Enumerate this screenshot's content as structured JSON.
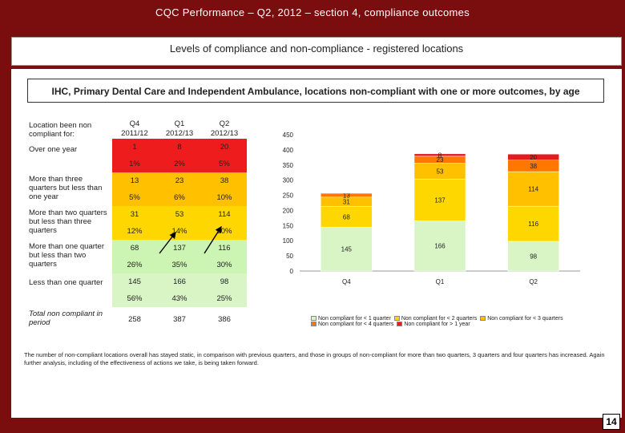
{
  "header": {
    "title": "CQC Performance – Q2, 2012 – section 4, compliance outcomes",
    "subtitle": "Levels of compliance and non-compliance - registered locations",
    "heading": "IHC, Primary Dental Care and Independent Ambulance, locations non-compliant with one or more outcomes, by age"
  },
  "table": {
    "label_header": "Location been non compliant for:",
    "columns": [
      {
        "q": "Q4",
        "y": "2011/12"
      },
      {
        "q": "Q1",
        "y": "2012/13"
      },
      {
        "q": "Q2",
        "y": "2012/13"
      }
    ],
    "rows": [
      {
        "label": "Over one year",
        "counts": [
          "1",
          "8",
          "20"
        ],
        "pcts": [
          "1%",
          "2%",
          "5%"
        ]
      },
      {
        "label": "More than three quarters but less than one year",
        "counts": [
          "13",
          "23",
          "38"
        ],
        "pcts": [
          "5%",
          "6%",
          "10%"
        ]
      },
      {
        "label": "More than two quarters but less than three quarters",
        "counts": [
          "31",
          "53",
          "114"
        ],
        "pcts": [
          "12%",
          "14%",
          "30%"
        ]
      },
      {
        "label": "More than one quarter but less than two quarters",
        "counts": [
          "68",
          "137",
          "116"
        ],
        "pcts": [
          "26%",
          "35%",
          "30%"
        ]
      },
      {
        "label": "Less than one quarter",
        "counts": [
          "145",
          "166",
          "98"
        ],
        "pcts": [
          "56%",
          "43%",
          "25%"
        ]
      }
    ],
    "total_label": "Total non compliant in period",
    "totals": [
      "258",
      "387",
      "386"
    ]
  },
  "chart_data": {
    "type": "bar",
    "stacked": true,
    "categories": [
      "Q4",
      "Q1",
      "Q2"
    ],
    "ylim": [
      0,
      450
    ],
    "yticks": [
      "0",
      "50",
      "100",
      "150",
      "200",
      "250",
      "300",
      "350",
      "400",
      "450"
    ],
    "series": [
      {
        "name": "Non compliant for < 1 quarter",
        "color": "#d9f5c6",
        "values": [
          145,
          166,
          98
        ]
      },
      {
        "name": "Non compliant for < 2 quarters",
        "color": "#ffd700",
        "values": [
          68,
          137,
          116
        ]
      },
      {
        "name": "Non compliant for < 3 quarters",
        "color": "#ffc000",
        "values": [
          31,
          53,
          114
        ]
      },
      {
        "name": "Non compliant for < 4 quarters",
        "color": "#ff7700",
        "values": [
          13,
          23,
          38
        ]
      },
      {
        "name": "Non compliant for > 1 year",
        "color": "#e51c1c",
        "values": [
          1,
          8,
          20
        ]
      }
    ],
    "legend": [
      "Non compliant for < 1 quarter",
      "Non compliant for < 2 quarters",
      "Non compliant for < 3 quarters",
      "Non compliant for < 4 quarters",
      "Non compliant for > 1 year"
    ]
  },
  "note": "The number of non-compliant locations overall has stayed static, in comparison with previous quarters, and those in groups of non-compliant for more than two quarters, 3 quarters and four quarters has increased. Again further analysis, including of the effectiveness of actions we take, is being taken forward.",
  "page_number": "14"
}
